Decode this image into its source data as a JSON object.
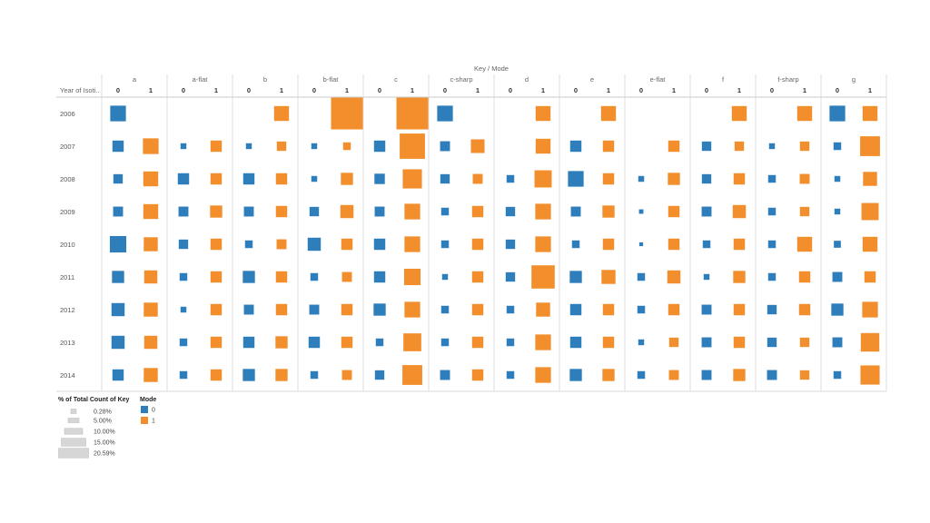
{
  "chart_data": {
    "type": "heatmap",
    "title": "Key / Mode",
    "row_header": "Year of Isoti..",
    "years": [
      "2006",
      "2007",
      "2008",
      "2009",
      "2010",
      "2011",
      "2012",
      "2013",
      "2014"
    ],
    "keys": [
      "a",
      "a-flat",
      "b",
      "b-flat",
      "c",
      "c-sharp",
      "d",
      "e",
      "e-flat",
      "f",
      "f-sharp",
      "g"
    ],
    "modes": [
      "0",
      "1"
    ],
    "mode_colors": {
      "0": "#2f7ebc",
      "1": "#f28e2b"
    },
    "measure": "% of Total Count of Key",
    "cells": {
      "2006": [
        [
          5.0,
          null
        ],
        [
          null,
          null
        ],
        [
          null,
          4.5
        ],
        [
          null,
          20.59
        ],
        [
          null,
          20.59
        ],
        [
          5.0,
          null
        ],
        [
          null,
          4.5
        ],
        [
          null,
          4.5
        ],
        [
          null,
          null
        ],
        [
          null,
          4.5
        ],
        [
          null,
          4.5
        ],
        [
          5.0,
          4.5
        ]
      ],
      "2007": [
        [
          2.6,
          5.0
        ],
        [
          0.7,
          2.6
        ],
        [
          0.7,
          1.8
        ],
        [
          0.7,
          1.2
        ],
        [
          2.6,
          13.0
        ],
        [
          2.0,
          3.8
        ],
        [
          null,
          4.5
        ],
        [
          2.6,
          2.6
        ],
        [
          null,
          2.6
        ],
        [
          1.8,
          1.8
        ],
        [
          0.7,
          1.8
        ],
        [
          1.2,
          8.0
        ]
      ],
      "2008": [
        [
          1.8,
          4.5
        ],
        [
          2.6,
          2.6
        ],
        [
          2.6,
          2.6
        ],
        [
          0.7,
          3.0
        ],
        [
          2.2,
          7.5
        ],
        [
          1.8,
          2.0
        ],
        [
          1.2,
          6.0
        ],
        [
          5.0,
          2.6
        ],
        [
          0.7,
          3.0
        ],
        [
          1.8,
          2.6
        ],
        [
          1.2,
          2.0
        ],
        [
          0.7,
          4.0
        ]
      ],
      "2009": [
        [
          2.0,
          4.5
        ],
        [
          2.0,
          3.0
        ],
        [
          2.0,
          2.6
        ],
        [
          1.8,
          3.5
        ],
        [
          2.0,
          5.0
        ],
        [
          1.2,
          2.6
        ],
        [
          1.8,
          5.0
        ],
        [
          2.0,
          3.0
        ],
        [
          0.4,
          2.6
        ],
        [
          2.0,
          3.5
        ],
        [
          1.2,
          1.8
        ],
        [
          0.7,
          6.0
        ]
      ],
      "2010": [
        [
          5.5,
          4.0
        ],
        [
          1.8,
          2.6
        ],
        [
          1.2,
          2.0
        ],
        [
          3.5,
          2.6
        ],
        [
          2.6,
          5.0
        ],
        [
          1.2,
          2.6
        ],
        [
          1.8,
          5.0
        ],
        [
          1.2,
          2.6
        ],
        [
          0.3,
          2.6
        ],
        [
          1.2,
          2.6
        ],
        [
          1.2,
          4.5
        ],
        [
          1.0,
          4.5
        ]
      ],
      "2011": [
        [
          3.0,
          3.5
        ],
        [
          1.2,
          2.6
        ],
        [
          3.0,
          2.6
        ],
        [
          1.2,
          2.0
        ],
        [
          2.6,
          5.5
        ],
        [
          0.7,
          2.6
        ],
        [
          1.8,
          11.0
        ],
        [
          3.0,
          4.0
        ],
        [
          1.2,
          3.5
        ],
        [
          0.7,
          3.0
        ],
        [
          1.2,
          2.6
        ],
        [
          2.0,
          2.6
        ]
      ],
      "2012": [
        [
          3.5,
          4.0
        ],
        [
          0.7,
          2.6
        ],
        [
          2.0,
          2.6
        ],
        [
          2.0,
          2.6
        ],
        [
          3.0,
          5.0
        ],
        [
          1.2,
          2.6
        ],
        [
          1.2,
          4.0
        ],
        [
          2.6,
          2.6
        ],
        [
          1.2,
          2.6
        ],
        [
          2.0,
          2.6
        ],
        [
          1.8,
          2.6
        ],
        [
          3.0,
          5.0
        ]
      ],
      "2013": [
        [
          3.5,
          3.5
        ],
        [
          1.2,
          2.6
        ],
        [
          2.6,
          3.0
        ],
        [
          2.6,
          2.6
        ],
        [
          1.2,
          6.5
        ],
        [
          1.2,
          2.6
        ],
        [
          1.2,
          5.0
        ],
        [
          2.6,
          2.6
        ],
        [
          0.7,
          1.8
        ],
        [
          2.0,
          2.6
        ],
        [
          1.8,
          1.8
        ],
        [
          2.0,
          7.0
        ]
      ],
      "2014": [
        [
          2.6,
          4.0
        ],
        [
          1.2,
          2.6
        ],
        [
          3.0,
          3.0
        ],
        [
          1.2,
          2.0
        ],
        [
          1.8,
          8.0
        ],
        [
          2.0,
          2.6
        ],
        [
          1.2,
          5.0
        ],
        [
          3.0,
          3.0
        ],
        [
          1.2,
          2.0
        ],
        [
          2.0,
          3.0
        ],
        [
          2.0,
          1.8
        ],
        [
          1.2,
          7.5
        ]
      ]
    },
    "size_legend": {
      "title": "% of Total Count of Key",
      "items": [
        {
          "label": "0.28%",
          "value": 0.28
        },
        {
          "label": "5.00%",
          "value": 5.0
        },
        {
          "label": "10.00%",
          "value": 10.0
        },
        {
          "label": "15.00%",
          "value": 15.0
        },
        {
          "label": "20.59%",
          "value": 20.59
        }
      ]
    },
    "color_legend": {
      "title": "Mode",
      "items": [
        {
          "label": "0",
          "mode": "0"
        },
        {
          "label": "1",
          "mode": "1"
        }
      ]
    }
  }
}
